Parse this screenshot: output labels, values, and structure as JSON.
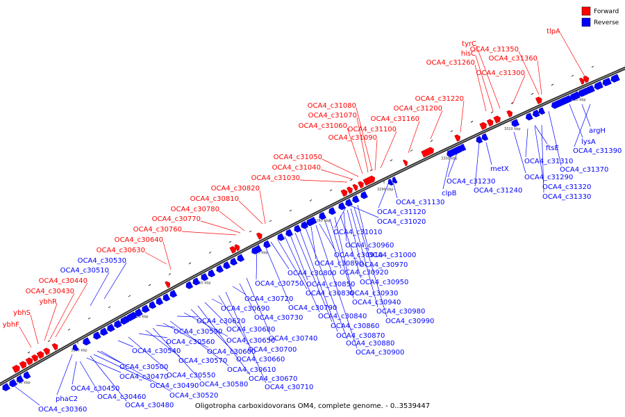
{
  "caption": "Oligotropha carboxidovorans OM4, complete genome. - 0..3539447",
  "legend": [
    {
      "label": "Forward",
      "color": "#ff0000"
    },
    {
      "label": "Reverse",
      "color": "#0000ff"
    }
  ],
  "colors": {
    "forward": "#ff0000",
    "reverse": "#0000ff",
    "axis": "#808080"
  },
  "ticks": [
    "3230 kbp",
    "3240 kbp",
    "3250 kbp",
    "3260 kbp",
    "3270 kbp",
    "3280 kbp",
    "3290 kbp",
    "3300 kbp",
    "3310 kbp",
    "3320 kbp"
  ],
  "forward_labels": [
    "ybhF",
    "ybhS",
    "ybhR",
    "OCA4_c30430",
    "OCA4_c30440",
    "OCA4_c30630",
    "OCA4_c30640",
    "OCA4_c30760",
    "OCA4_c30770",
    "OCA4_c30780",
    "OCA4_c30810",
    "OCA4_c30820",
    "OCA4_c31030",
    "OCA4_c31040",
    "OCA4_c31050",
    "OCA4_c31060",
    "OCA4_c31070",
    "OCA4_c31080",
    "OCA4_c31090",
    "OCA4_c31100",
    "OCA4_c31160",
    "OCA4_c31200",
    "OCA4_c31220",
    "OCA4_c31260",
    "hisC",
    "tyrC",
    "OCA4_c31300",
    "OCA4_c31350",
    "OCA4_c31360",
    "tlpA"
  ],
  "reverse_labels_upper": [
    "OCA4_c30510",
    "OCA4_c30530"
  ],
  "reverse_labels": [
    "OCA4_c30360",
    "phaC2",
    "OCA4_c30450",
    "OCA4_c30460",
    "OCA4_c30470",
    "OCA4_c30480",
    "OCA4_c30490",
    "OCA4_c30500",
    "OCA4_c30520",
    "OCA4_c30540",
    "OCA4_c30550",
    "OCA4_c30560",
    "OCA4_c30570",
    "OCA4_c30580",
    "OCA4_c30590",
    "OCA4_c30600",
    "OCA4_c30610",
    "OCA4_c30620",
    "OCA4_c30650",
    "OCA4_c30660",
    "OCA4_c30670",
    "OCA4_c30680",
    "OCA4_c30690",
    "OCA4_c30700",
    "OCA4_c30710",
    "OCA4_c30720",
    "OCA4_c30730",
    "OCA4_c30740",
    "OCA4_c30750",
    "OCA4_c30790",
    "OCA4_c30800",
    "OCA4_c30830",
    "OCA4_c30840",
    "OCA4_c30850",
    "OCA4_c30860",
    "OCA4_c30870",
    "OCA4_c30880",
    "OCA4_c30890",
    "OCA4_c30900",
    "OCA4_c30910",
    "OCA4_c30920",
    "OCA4_c30930",
    "OCA4_c30940",
    "OCA4_c30950",
    "OCA4_c30960",
    "OCA4_c30970",
    "OCA4_c30980",
    "OCA4_c30990",
    "OCA4_c31000",
    "OCA4_c31010",
    "OCA4_c31020",
    "OCA4_c31120",
    "OCA4_c31130",
    "clpB",
    "OCA4_c31230",
    "OCA4_c31240",
    "metX",
    "ftsE",
    "OCA4_c31290",
    "OCA4_c31310",
    "OCA4_c31320",
    "OCA4_c31330",
    "OCA4_c31370",
    "lysA",
    "argH",
    "OCA4_c31390"
  ]
}
